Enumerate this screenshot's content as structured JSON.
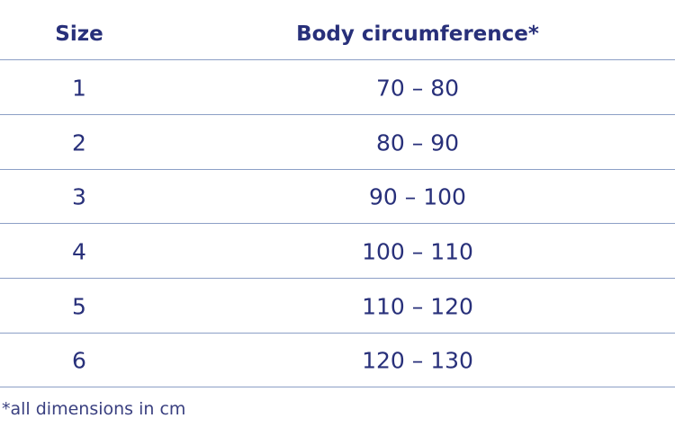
{
  "table": {
    "headers": [
      "Size",
      "Body circumference*"
    ],
    "rows": [
      [
        "1",
        "70 – 80"
      ],
      [
        "2",
        "80 – 90"
      ],
      [
        "3",
        "90 – 100"
      ],
      [
        "4",
        "100 – 110"
      ],
      [
        "5",
        "110 – 120"
      ],
      [
        "6",
        "120 – 130"
      ]
    ]
  },
  "footnote": "*all dimensions in cm"
}
